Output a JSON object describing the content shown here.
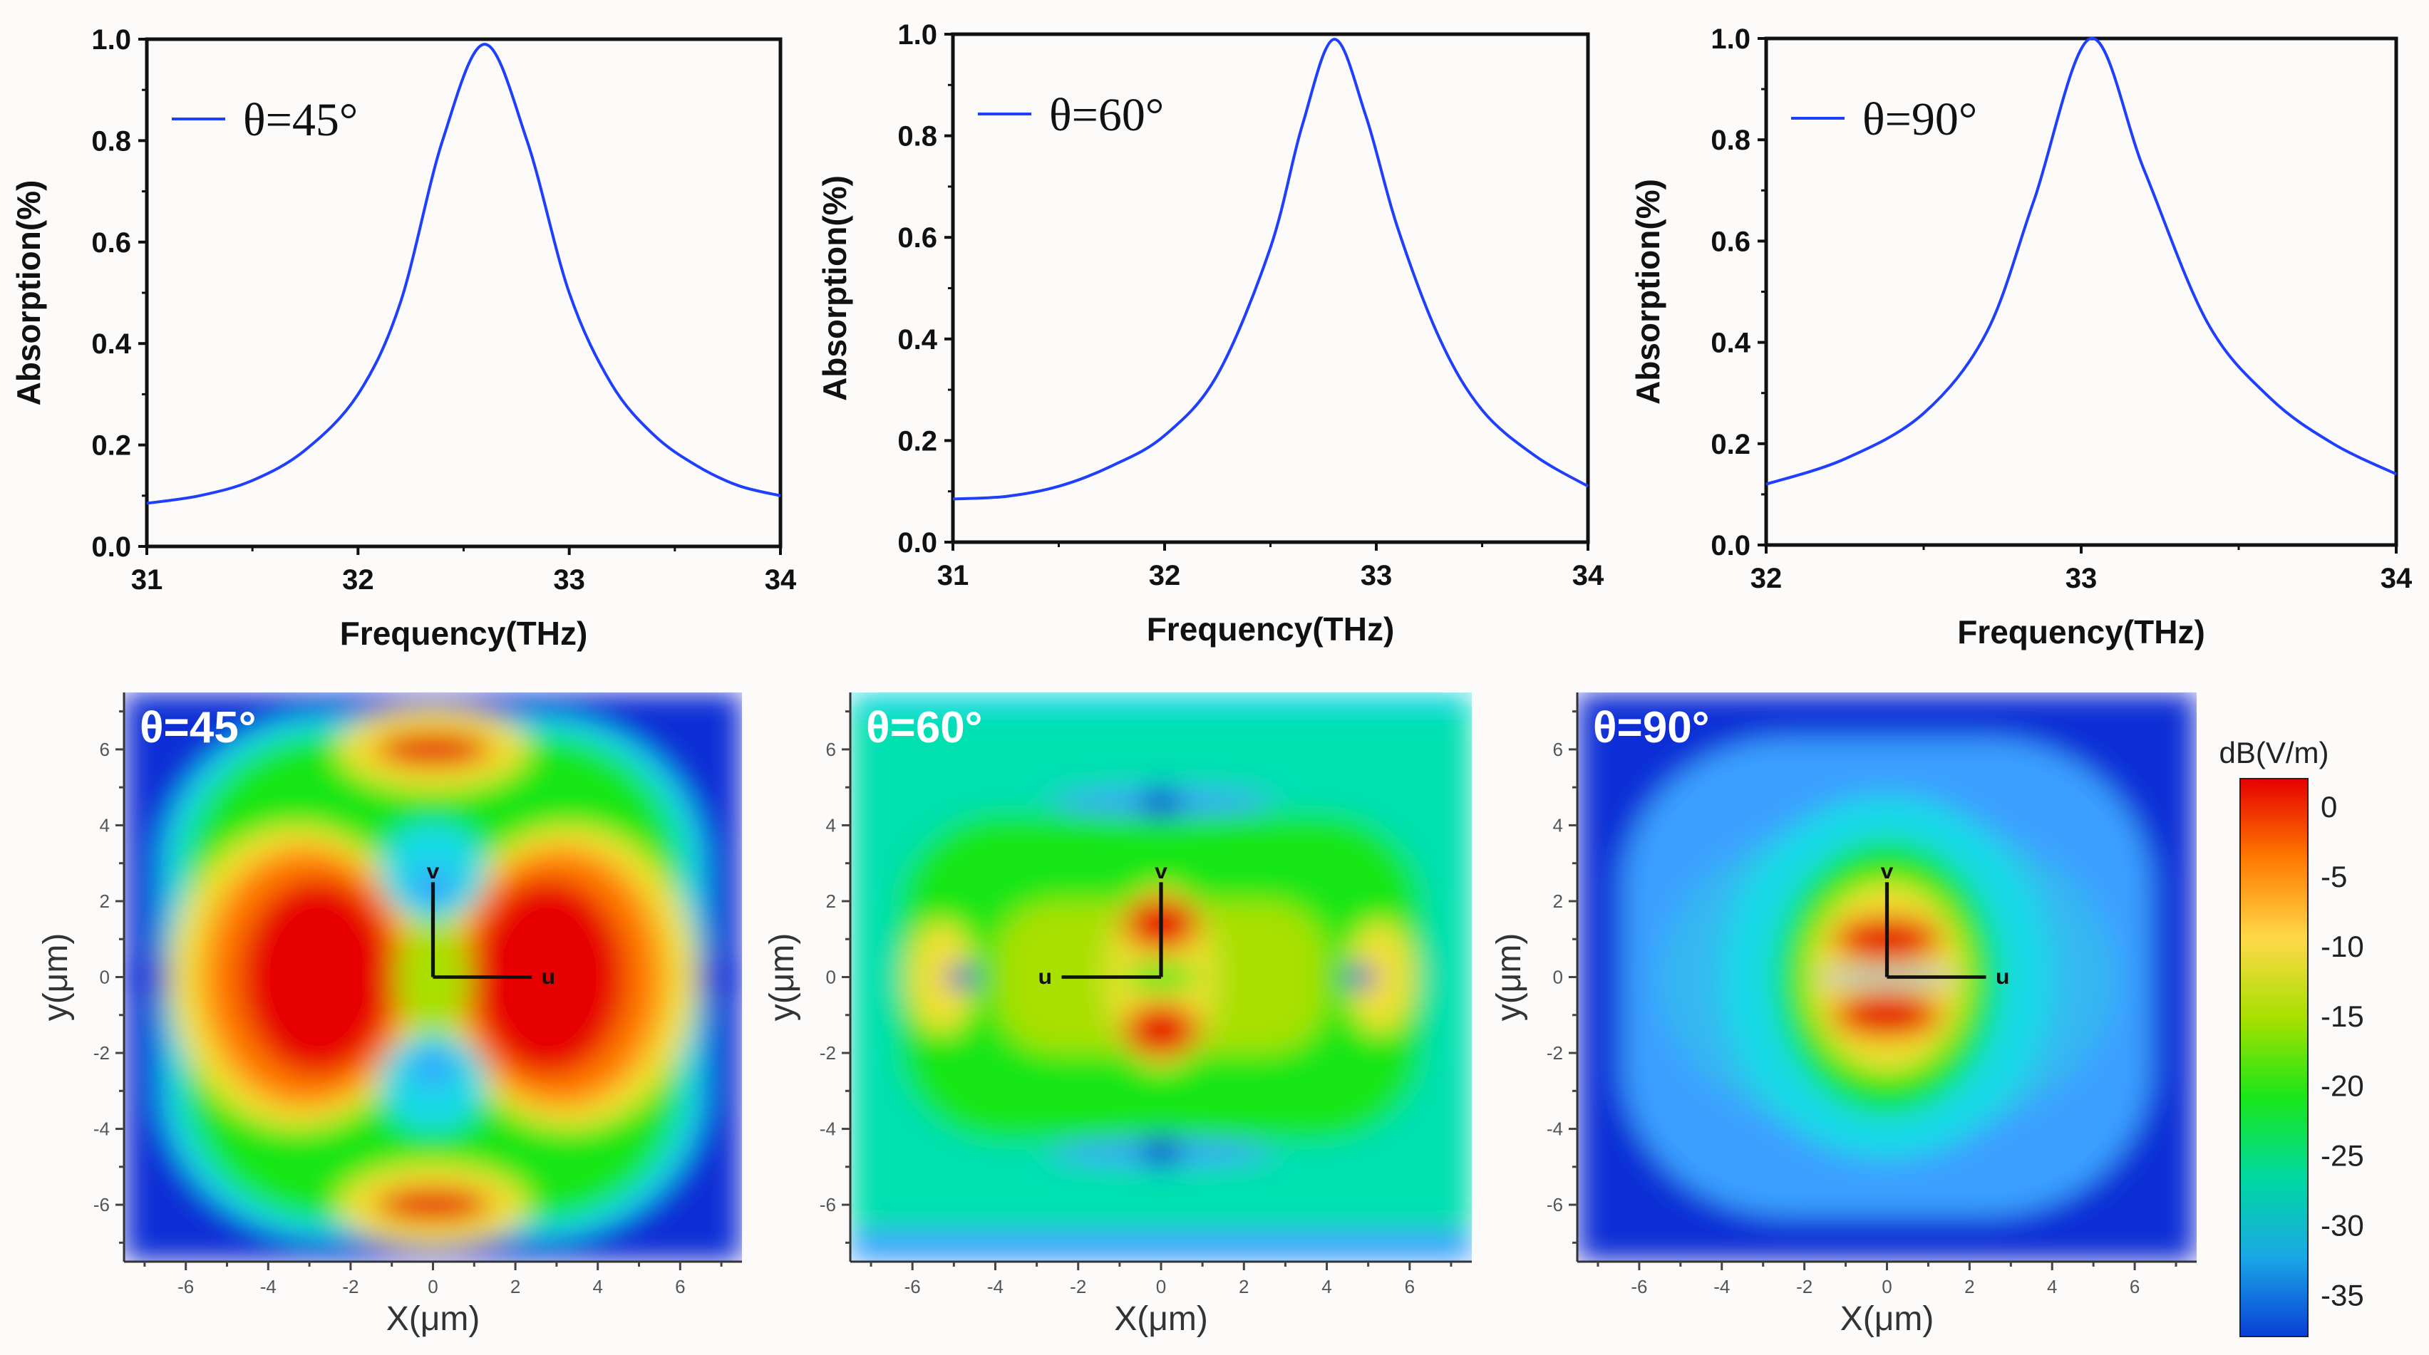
{
  "chart_data": [
    {
      "type": "line",
      "legend": "θ=45°",
      "xlabel": "Frequency(THz)",
      "ylabel": "Absorption(%)",
      "xlim": [
        31,
        34
      ],
      "ylim": [
        0,
        1.0
      ],
      "xticks": [
        "31",
        "32",
        "33",
        "34"
      ],
      "yticks": [
        "0.0",
        "0.2",
        "0.4",
        "0.6",
        "0.8",
        "1.0"
      ],
      "x": [
        31,
        31.25,
        31.5,
        31.75,
        32,
        32.2,
        32.4,
        32.6,
        32.8,
        33,
        33.2,
        33.4,
        33.6,
        33.8,
        34
      ],
      "y": [
        0.085,
        0.1,
        0.13,
        0.19,
        0.3,
        0.48,
        0.8,
        0.99,
        0.8,
        0.5,
        0.32,
        0.22,
        0.16,
        0.12,
        0.1
      ],
      "color": "#1f3fff"
    },
    {
      "type": "line",
      "legend": "θ=60°",
      "xlabel": "Frequency(THz)",
      "ylabel": "Absorption(%)",
      "xlim": [
        31,
        34
      ],
      "ylim": [
        0,
        1.0
      ],
      "xticks": [
        "31",
        "32",
        "33",
        "34"
      ],
      "yticks": [
        "0.0",
        "0.2",
        "0.4",
        "0.6",
        "0.8",
        "1.0"
      ],
      "x": [
        31,
        31.25,
        31.5,
        31.75,
        32,
        32.25,
        32.5,
        32.65,
        32.8,
        32.95,
        33.1,
        33.3,
        33.5,
        33.75,
        34
      ],
      "y": [
        0.085,
        0.09,
        0.11,
        0.15,
        0.21,
        0.33,
        0.58,
        0.82,
        0.99,
        0.84,
        0.62,
        0.4,
        0.26,
        0.17,
        0.11
      ],
      "color": "#1f3fff"
    },
    {
      "type": "line",
      "legend": "θ=90°",
      "xlabel": "Frequency(THz)",
      "ylabel": "Absorption(%)",
      "xlim": [
        32,
        34
      ],
      "ylim": [
        0,
        1.0
      ],
      "xticks": [
        "32",
        "33",
        "34"
      ],
      "yticks": [
        "0.0",
        "0.2",
        "0.4",
        "0.6",
        "0.8",
        "1.0"
      ],
      "x": [
        32,
        32.25,
        32.5,
        32.7,
        32.85,
        33.03,
        33.2,
        33.4,
        33.6,
        33.8,
        34
      ],
      "y": [
        0.12,
        0.17,
        0.26,
        0.42,
        0.68,
        1.0,
        0.74,
        0.44,
        0.29,
        0.2,
        0.14
      ],
      "color": "#1f3fff"
    },
    {
      "type": "heatmap",
      "label": "θ=45°",
      "xlabel": "X(μm)",
      "ylabel": "y(μm)",
      "xlim": [
        -7.5,
        7.5
      ],
      "ylim": [
        -7.5,
        7.5
      ],
      "ticks": [
        "-6",
        "-4",
        "-2",
        "0",
        "2",
        "4",
        "6"
      ],
      "axis_labels": [
        "u",
        "v"
      ]
    },
    {
      "type": "heatmap",
      "label": "θ=60°",
      "xlabel": "X(μm)",
      "ylabel": "y(μm)",
      "xlim": [
        -7.5,
        7.5
      ],
      "ylim": [
        -7.5,
        7.5
      ],
      "ticks": [
        "-6",
        "-4",
        "-2",
        "0",
        "2",
        "4",
        "6"
      ],
      "axis_labels": [
        "u",
        "v"
      ]
    },
    {
      "type": "heatmap",
      "label": "θ=90°",
      "xlabel": "X(μm)",
      "ylabel": "y(μm)",
      "xlim": [
        -7.5,
        7.5
      ],
      "ylim": [
        -7.5,
        7.5
      ],
      "ticks": [
        "-6",
        "-4",
        "-2",
        "0",
        "2",
        "4",
        "6"
      ],
      "axis_labels": [
        "u",
        "v"
      ]
    }
  ],
  "colorbar": {
    "title": "dB(V/m)",
    "range": [
      -38,
      2
    ],
    "ticks": [
      0,
      -5,
      -10,
      -15,
      -20,
      -25,
      -30,
      -35
    ],
    "tick_labels": [
      "0",
      "-5",
      "-10",
      "-15",
      "-20",
      "-25",
      "-30",
      "-35"
    ],
    "colors": [
      "#e60000",
      "#ff7a00",
      "#ffd94a",
      "#a8e000",
      "#19e619",
      "#00d9a0",
      "#1aa8e6",
      "#0a3fd6"
    ]
  }
}
